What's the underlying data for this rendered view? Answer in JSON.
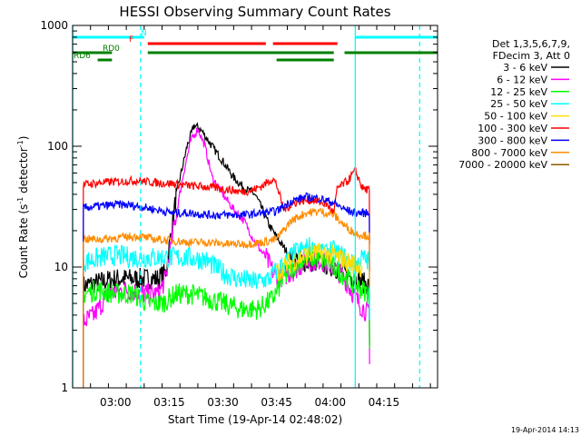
{
  "chart_data": {
    "type": "line",
    "title": "HESSI Observing Summary Count Rates",
    "xlabel": "Start Time (19-Apr-14 02:48:02)",
    "ylabel_main": "Count Rate (s",
    "ylabel_sup1": "-1",
    "ylabel_mid": " detector",
    "ylabel_sup2": "-1",
    "ylabel_end": ")",
    "y_scale": "log",
    "ylim": [
      1,
      1000
    ],
    "xlim": [
      "02:48",
      "04:30"
    ],
    "x_ticks": [
      "03:00",
      "03:15",
      "03:30",
      "03:45",
      "04:00",
      "04:15"
    ],
    "y_ticks": [
      "1",
      "10",
      "100",
      "1000"
    ],
    "legend_header": [
      "Det 1,3,5,6,7,9,",
      "FDecim 3, Att 0"
    ],
    "legend_position": "right",
    "timestamp": "19-Apr-2014 14:13",
    "series": [
      {
        "name": "3 - 6 keV",
        "color": "#000000",
        "points": [
          [
            "02:51",
            7
          ],
          [
            "03:00",
            8
          ],
          [
            "03:08",
            8
          ],
          [
            "03:12",
            8
          ],
          [
            "03:14",
            9
          ],
          [
            "03:17",
            40
          ],
          [
            "03:20",
            100
          ],
          [
            "03:22",
            150
          ],
          [
            "03:24",
            135
          ],
          [
            "03:27",
            100
          ],
          [
            "03:30",
            75
          ],
          [
            "03:33",
            55
          ],
          [
            "03:36",
            45
          ],
          [
            "03:39",
            40
          ],
          [
            "03:41",
            30
          ],
          [
            "03:43",
            22
          ],
          [
            "03:46",
            16
          ],
          [
            "03:49",
            12
          ],
          [
            "03:53",
            11
          ],
          [
            "03:57",
            11
          ],
          [
            "04:01",
            10
          ],
          [
            "04:04",
            9
          ],
          [
            "04:07",
            8
          ],
          [
            "04:11",
            7
          ]
        ]
      },
      {
        "name": "6 - 12 keV",
        "color": "#ff00ff",
        "points": [
          [
            "02:51",
            3.5
          ],
          [
            "02:54",
            4
          ],
          [
            "02:58",
            6
          ],
          [
            "03:03",
            6.5
          ],
          [
            "03:08",
            6
          ],
          [
            "03:12",
            6
          ],
          [
            "03:14",
            8
          ],
          [
            "03:17",
            28
          ],
          [
            "03:19",
            60
          ],
          [
            "03:21",
            110
          ],
          [
            "03:23",
            140
          ],
          [
            "03:25",
            100
          ],
          [
            "03:27",
            55
          ],
          [
            "03:30",
            40
          ],
          [
            "03:33",
            30
          ],
          [
            "03:36",
            24
          ],
          [
            "03:39",
            16
          ],
          [
            "03:42",
            12
          ],
          [
            "03:45",
            8
          ],
          [
            "03:49",
            9
          ],
          [
            "03:53",
            11
          ],
          [
            "03:57",
            11.5
          ],
          [
            "04:01",
            10
          ],
          [
            "04:04",
            8
          ],
          [
            "04:08",
            5
          ],
          [
            "04:11",
            4
          ]
        ]
      },
      {
        "name": "12 - 25 keV",
        "color": "#00ff00",
        "points": [
          [
            "02:51",
            6
          ],
          [
            "02:55",
            6.5
          ],
          [
            "03:00",
            6
          ],
          [
            "03:05",
            6
          ],
          [
            "03:09",
            5
          ],
          [
            "03:13",
            5
          ],
          [
            "03:17",
            6
          ],
          [
            "03:21",
            6
          ],
          [
            "03:26",
            5.5
          ],
          [
            "03:30",
            5
          ],
          [
            "03:35",
            4.5
          ],
          [
            "03:40",
            4.5
          ],
          [
            "03:44",
            5.5
          ],
          [
            "03:47",
            8
          ],
          [
            "03:51",
            11
          ],
          [
            "03:55",
            12
          ],
          [
            "03:59",
            11
          ],
          [
            "04:03",
            9
          ],
          [
            "04:07",
            7
          ],
          [
            "04:11",
            6
          ]
        ]
      },
      {
        "name": "25 - 50 keV",
        "color": "#00ffff",
        "points": [
          [
            "02:51",
            11
          ],
          [
            "02:56",
            12
          ],
          [
            "03:00",
            12.5
          ],
          [
            "03:05",
            12
          ],
          [
            "03:10",
            12
          ],
          [
            "03:15",
            12
          ],
          [
            "03:20",
            12
          ],
          [
            "03:25",
            11.5
          ],
          [
            "03:30",
            9
          ],
          [
            "03:34",
            8
          ],
          [
            "03:39",
            7.5
          ],
          [
            "03:43",
            8
          ],
          [
            "03:46",
            10
          ],
          [
            "03:50",
            13
          ],
          [
            "03:55",
            15
          ],
          [
            "04:00",
            14
          ],
          [
            "04:04",
            12
          ],
          [
            "04:07",
            10
          ],
          [
            "04:09",
            12
          ],
          [
            "04:11",
            11
          ]
        ]
      },
      {
        "name": "50 - 100 keV",
        "color": "#ffdd00",
        "points": [
          [
            "03:45",
            9
          ],
          [
            "03:49",
            11
          ],
          [
            "03:53",
            12.5
          ],
          [
            "03:57",
            13
          ],
          [
            "04:01",
            12.5
          ],
          [
            "04:05",
            11
          ],
          [
            "04:09",
            10
          ]
        ]
      },
      {
        "name": "100 - 300 keV",
        "color": "#ff0000",
        "points": [
          [
            "02:51",
            48
          ],
          [
            "02:56",
            50
          ],
          [
            "03:01",
            51
          ],
          [
            "03:06",
            52
          ],
          [
            "03:11",
            50
          ],
          [
            "03:16",
            49
          ],
          [
            "03:21",
            47
          ],
          [
            "03:26",
            46
          ],
          [
            "03:31",
            44
          ],
          [
            "03:35",
            42
          ],
          [
            "03:38",
            43
          ],
          [
            "03:41",
            47
          ],
          [
            "03:44",
            54
          ],
          [
            "03:45",
            48
          ],
          [
            "03:47",
            30
          ],
          [
            "03:51",
            35
          ],
          [
            "03:55",
            36
          ],
          [
            "03:59",
            33
          ],
          [
            "04:01",
            28
          ],
          [
            "04:02",
            45
          ],
          [
            "04:05",
            52
          ],
          [
            "04:07",
            63
          ],
          [
            "04:09",
            45
          ],
          [
            "04:11",
            43
          ]
        ]
      },
      {
        "name": "300 - 800 keV",
        "color": "#0000ff",
        "points": [
          [
            "02:51",
            31
          ],
          [
            "02:56",
            32
          ],
          [
            "03:01",
            33
          ],
          [
            "03:06",
            32
          ],
          [
            "03:11",
            30
          ],
          [
            "03:16",
            28
          ],
          [
            "03:21",
            28
          ],
          [
            "03:26",
            27
          ],
          [
            "03:31",
            27
          ],
          [
            "03:36",
            27
          ],
          [
            "03:41",
            28
          ],
          [
            "03:45",
            29
          ],
          [
            "03:49",
            35
          ],
          [
            "03:53",
            38
          ],
          [
            "03:57",
            37
          ],
          [
            "04:01",
            34
          ],
          [
            "04:04",
            30
          ],
          [
            "04:07",
            28
          ],
          [
            "04:11",
            28
          ]
        ]
      },
      {
        "name": "800 - 7000 keV",
        "color": "#ff8c00",
        "points": [
          [
            "02:51",
            17
          ],
          [
            "02:56",
            17
          ],
          [
            "03:01",
            17.5
          ],
          [
            "03:06",
            18
          ],
          [
            "03:11",
            17
          ],
          [
            "03:16",
            16.5
          ],
          [
            "03:21",
            16
          ],
          [
            "03:26",
            16
          ],
          [
            "03:31",
            15.5
          ],
          [
            "03:36",
            15.5
          ],
          [
            "03:41",
            16
          ],
          [
            "03:45",
            17
          ],
          [
            "03:49",
            24
          ],
          [
            "03:53",
            28
          ],
          [
            "03:57",
            29
          ],
          [
            "04:01",
            27
          ],
          [
            "04:04",
            22
          ],
          [
            "04:07",
            19
          ],
          [
            "04:11",
            18
          ]
        ]
      },
      {
        "name": "7000 - 20000 keV",
        "color": "#8b5a00",
        "points": []
      }
    ],
    "attenuator_bars": [
      {
        "label": "N",
        "label_color": "#00ffff",
        "color": "#00ffff",
        "segments": [
          [
            "02:48",
            "03:08"
          ],
          [
            "04:07",
            "04:30"
          ]
        ]
      },
      {
        "label": "F",
        "label_color": "#ff0000",
        "color": "#ff0000",
        "segments": [
          [
            "03:09",
            "03:42"
          ],
          [
            "03:44",
            "04:02"
          ]
        ]
      },
      {
        "label": "RD0",
        "label_color": "#008000",
        "color": "#008000",
        "segments": [
          [
            "02:48",
            "02:59"
          ],
          [
            "03:09",
            "04:01"
          ],
          [
            "04:04",
            "04:30"
          ]
        ]
      },
      {
        "label": "RD6",
        "label_color": "#008000",
        "color": "#008000",
        "segments": [
          [
            "02:55",
            "02:59"
          ],
          [
            "03:45",
            "04:01"
          ]
        ]
      }
    ],
    "vertical_lines": [
      {
        "time": "02:48",
        "style": "solid",
        "color": "#00ffff"
      },
      {
        "time": "03:07",
        "style": "dashed",
        "color": "#00ffff"
      },
      {
        "time": "04:07",
        "style": "solid",
        "color": "#00ffff"
      },
      {
        "time": "04:25",
        "style": "dashed",
        "color": "#00ffff"
      }
    ]
  }
}
